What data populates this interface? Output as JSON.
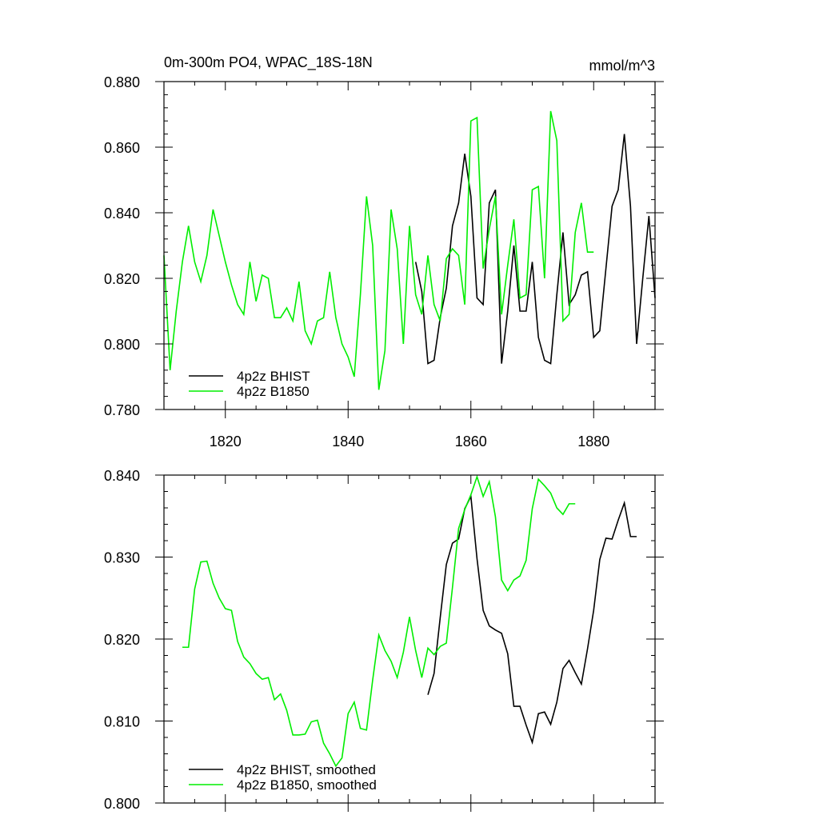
{
  "chart_data": [
    {
      "type": "line",
      "title": "0m-300m PO4, WPAC_18S-18N",
      "units": "mmol/m^3",
      "xlim": [
        1810,
        1890
      ],
      "ylim": [
        0.78,
        0.88
      ],
      "x_ticks": [
        1820,
        1840,
        1860,
        1880
      ],
      "x_tick_labels": [
        "1820",
        "1840",
        "1860",
        "1880"
      ],
      "y_ticks": [
        0.78,
        0.8,
        0.82,
        0.84,
        0.86,
        0.88
      ],
      "y_tick_labels": [
        "0.780",
        "0.800",
        "0.820",
        "0.840",
        "0.860",
        "0.880"
      ],
      "legend_position": "bottom-left",
      "series": [
        {
          "name": "4p2z BHIST",
          "color": "#000000",
          "x": [
            1851,
            1852,
            1853,
            1854,
            1855,
            1856,
            1857,
            1858,
            1859,
            1860,
            1861,
            1862,
            1863,
            1864,
            1865,
            1866,
            1867,
            1868,
            1869,
            1870,
            1871,
            1872,
            1873,
            1874,
            1875,
            1876,
            1877,
            1878,
            1879,
            1880,
            1881,
            1882,
            1883,
            1884,
            1885,
            1886,
            1887,
            1888,
            1889,
            1890
          ],
          "y": [
            0.825,
            0.816,
            0.794,
            0.795,
            0.808,
            0.817,
            0.836,
            0.843,
            0.858,
            0.845,
            0.814,
            0.812,
            0.843,
            0.847,
            0.794,
            0.81,
            0.83,
            0.81,
            0.81,
            0.825,
            0.802,
            0.795,
            0.794,
            0.815,
            0.834,
            0.812,
            0.815,
            0.821,
            0.822,
            0.802,
            0.804,
            0.823,
            0.842,
            0.847,
            0.864,
            0.842,
            0.8,
            0.82,
            0.839,
            0.814
          ]
        },
        {
          "name": "4p2z B1850",
          "color": "#00ee00",
          "x": [
            1810,
            1811,
            1812,
            1813,
            1814,
            1815,
            1816,
            1817,
            1818,
            1819,
            1820,
            1821,
            1822,
            1823,
            1824,
            1825,
            1826,
            1827,
            1828,
            1829,
            1830,
            1831,
            1832,
            1833,
            1834,
            1835,
            1836,
            1837,
            1838,
            1839,
            1840,
            1841,
            1842,
            1843,
            1844,
            1845,
            1846,
            1847,
            1848,
            1849,
            1850,
            1851,
            1852,
            1853,
            1854,
            1855,
            1856,
            1857,
            1858,
            1859,
            1860,
            1861,
            1862,
            1863,
            1864,
            1865,
            1866,
            1867,
            1868,
            1869,
            1870,
            1871,
            1872,
            1873,
            1874,
            1875,
            1876,
            1877,
            1878,
            1879,
            1880
          ],
          "y": [
            0.827,
            0.792,
            0.81,
            0.825,
            0.836,
            0.825,
            0.819,
            0.827,
            0.841,
            0.833,
            0.825,
            0.818,
            0.812,
            0.809,
            0.825,
            0.813,
            0.821,
            0.82,
            0.808,
            0.808,
            0.811,
            0.807,
            0.819,
            0.804,
            0.8,
            0.807,
            0.808,
            0.822,
            0.808,
            0.8,
            0.796,
            0.79,
            0.815,
            0.845,
            0.83,
            0.786,
            0.798,
            0.841,
            0.829,
            0.8,
            0.836,
            0.815,
            0.809,
            0.827,
            0.812,
            0.807,
            0.826,
            0.829,
            0.827,
            0.812,
            0.868,
            0.869,
            0.823,
            0.835,
            0.845,
            0.809,
            0.824,
            0.838,
            0.814,
            0.815,
            0.847,
            0.848,
            0.82,
            0.871,
            0.862,
            0.807,
            0.809,
            0.834,
            0.843,
            0.828,
            0.828
          ]
        }
      ]
    },
    {
      "type": "line",
      "xlim": [
        1810,
        1890
      ],
      "ylim": [
        0.8,
        0.84
      ],
      "x_ticks": [
        1820,
        1840,
        1860,
        1880
      ],
      "y_ticks": [
        0.8,
        0.81,
        0.82,
        0.83,
        0.84
      ],
      "y_tick_labels": [
        "0.800",
        "0.810",
        "0.820",
        "0.830",
        "0.840"
      ],
      "legend_position": "bottom-left",
      "series": [
        {
          "name": "4p2z BHIST, smoothed",
          "color": "#000000",
          "x": [
            1853,
            1854,
            1855,
            1856,
            1857,
            1858,
            1859,
            1860,
            1861,
            1862,
            1863,
            1864,
            1865,
            1866,
            1867,
            1868,
            1869,
            1870,
            1871,
            1872,
            1873,
            1874,
            1875,
            1876,
            1877,
            1878,
            1879,
            1880,
            1881,
            1882,
            1883,
            1884,
            1885,
            1886,
            1887
          ],
          "y": [
            0.8132,
            0.8158,
            0.8226,
            0.8291,
            0.8317,
            0.8322,
            0.8359,
            0.8374,
            0.8298,
            0.8235,
            0.8216,
            0.8211,
            0.8207,
            0.8182,
            0.8118,
            0.8118,
            0.8095,
            0.8074,
            0.8109,
            0.8111,
            0.8096,
            0.8123,
            0.8164,
            0.8174,
            0.8159,
            0.8145,
            0.8188,
            0.8235,
            0.8297,
            0.8323,
            0.8322,
            0.8345,
            0.8366,
            0.8325,
            0.8325
          ]
        },
        {
          "name": "4p2z B1850, smoothed",
          "color": "#00ee00",
          "x": [
            1813,
            1814,
            1815,
            1816,
            1817,
            1818,
            1819,
            1820,
            1821,
            1822,
            1823,
            1824,
            1825,
            1826,
            1827,
            1828,
            1829,
            1830,
            1831,
            1832,
            1833,
            1834,
            1835,
            1836,
            1837,
            1838,
            1839,
            1840,
            1841,
            1842,
            1843,
            1844,
            1845,
            1846,
            1847,
            1848,
            1849,
            1850,
            1851,
            1852,
            1853,
            1854,
            1855,
            1856,
            1857,
            1858,
            1859,
            1860,
            1861,
            1862,
            1863,
            1864,
            1865,
            1866,
            1867,
            1868,
            1869,
            1870,
            1871,
            1872,
            1873,
            1874,
            1875,
            1876,
            1877
          ],
          "y": [
            0.819,
            0.819,
            0.8261,
            0.8294,
            0.8295,
            0.8268,
            0.825,
            0.8237,
            0.8235,
            0.8197,
            0.8178,
            0.817,
            0.8158,
            0.8151,
            0.8153,
            0.8126,
            0.8133,
            0.8113,
            0.8083,
            0.8083,
            0.8084,
            0.8099,
            0.8101,
            0.8073,
            0.806,
            0.8045,
            0.8055,
            0.8109,
            0.8123,
            0.8091,
            0.8089,
            0.815,
            0.8205,
            0.8186,
            0.8173,
            0.8153,
            0.8184,
            0.8227,
            0.8186,
            0.8153,
            0.8189,
            0.8181,
            0.8191,
            0.8195,
            0.8263,
            0.8335,
            0.8358,
            0.8376,
            0.8398,
            0.8374,
            0.8392,
            0.8349,
            0.8272,
            0.8259,
            0.8272,
            0.8277,
            0.8296,
            0.8359,
            0.8395,
            0.8387,
            0.8378,
            0.836,
            0.8352,
            0.8365,
            0.8365
          ]
        }
      ]
    }
  ]
}
